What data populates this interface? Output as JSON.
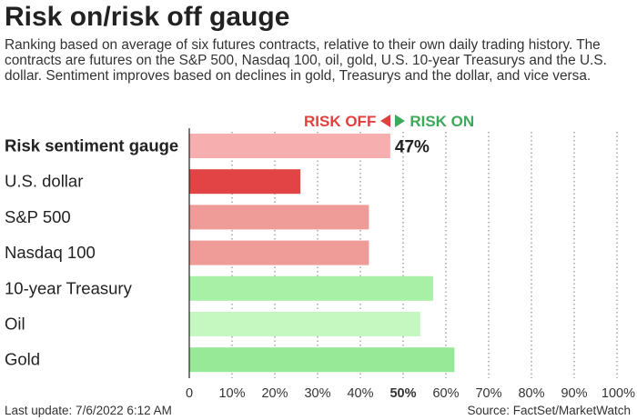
{
  "header": {
    "title": "Risk on/risk off gauge",
    "subtitle": "Ranking based on average of six futures contracts, relative to their own daily trading history. The contracts are futures on the S&P 500, Nasdaq 100, oil, gold, U.S. 10-year Treasurys and the U.S. dollar. Sentiment improves based on declines in gold, Treasurys and the dollar, and vice versa."
  },
  "legend": {
    "risk_off_label": "RISK OFF",
    "risk_on_label": "RISK ON",
    "risk_off_color": "#e0403f",
    "risk_on_color": "#3ea95a"
  },
  "chart_data": {
    "type": "bar",
    "orientation": "horizontal",
    "categories": [
      "Risk sentiment gauge",
      "U.S. dollar",
      "S&P 500",
      "Nasdaq 100",
      "10-year Treasury",
      "Oil",
      "Gold"
    ],
    "values": [
      47,
      26,
      42,
      42,
      57,
      54,
      62
    ],
    "value_labels": [
      "47%",
      "",
      "",
      "",
      "",
      "",
      ""
    ],
    "bar_colors": [
      "#f7aeae",
      "#e24446",
      "#ef9b98",
      "#ef9b98",
      "#a8f0a6",
      "#c4f8c0",
      "#97e897"
    ],
    "bold_categories": [
      "Risk sentiment gauge"
    ],
    "xlim": [
      0,
      100
    ],
    "xticks": [
      "0",
      "10%",
      "20%",
      "30%",
      "40%",
      "50%",
      "60%",
      "70%",
      "80%",
      "90%",
      "100%"
    ],
    "bold_ticks": [
      "50%"
    ],
    "grid": "vertical dotted",
    "xlabel": "",
    "ylabel": ""
  },
  "footer": {
    "last_update": "Last update: 7/6/2022 6:12 AM",
    "source": "Source: FactSet/MarketWatch"
  }
}
